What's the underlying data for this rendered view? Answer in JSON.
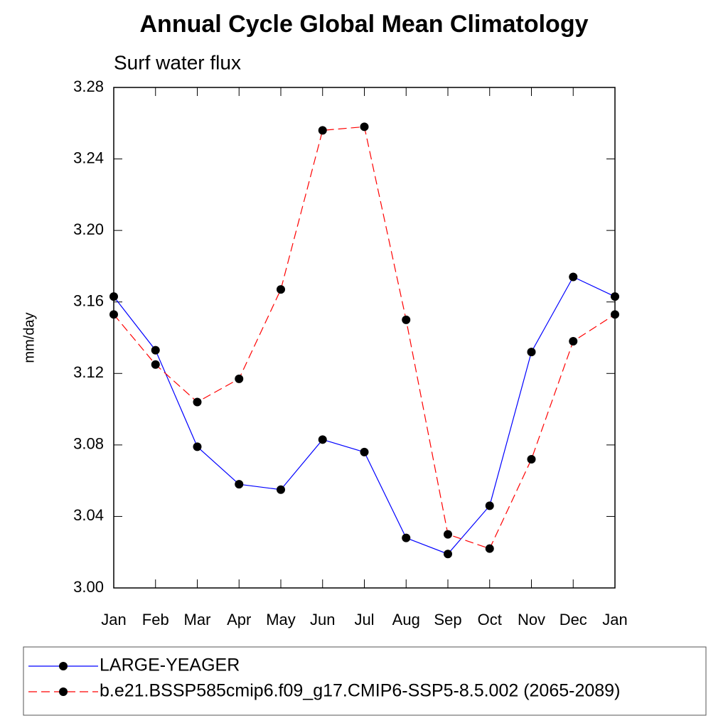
{
  "chart_data": {
    "type": "line",
    "title": "Annual Cycle Global Mean Climatology",
    "subtitle": "Surf water flux",
    "y_label": "mm/day",
    "categories": [
      "Jan",
      "Feb",
      "Mar",
      "Apr",
      "May",
      "Jun",
      "Jul",
      "Aug",
      "Sep",
      "Oct",
      "Nov",
      "Dec",
      "Jan"
    ],
    "series": [
      {
        "name": "LARGE-YEAGER",
        "color": "#0000ff",
        "dash": "solid",
        "values": [
          3.163,
          3.133,
          3.079,
          3.058,
          3.055,
          3.083,
          3.076,
          3.028,
          3.019,
          3.046,
          3.132,
          3.174,
          3.163
        ]
      },
      {
        "name": "b.e21.BSSP585cmip6.f09_g17.CMIP6-SSP5-8.5.002 (2065-2089)",
        "color": "#ff0000",
        "dash": "dashed",
        "values": [
          3.153,
          3.125,
          3.104,
          3.117,
          3.167,
          3.256,
          3.258,
          3.15,
          3.03,
          3.022,
          3.072,
          3.138,
          3.153
        ]
      }
    ],
    "ylim": [
      3.0,
      3.28
    ],
    "yticks": [
      {
        "value": 3.0,
        "label": "3.00"
      },
      3.04,
      3.08,
      3.12,
      3.16,
      {
        "value": 3.2,
        "label": "3.20"
      },
      3.24,
      3.28
    ],
    "grid": false,
    "legend": "bottom"
  }
}
